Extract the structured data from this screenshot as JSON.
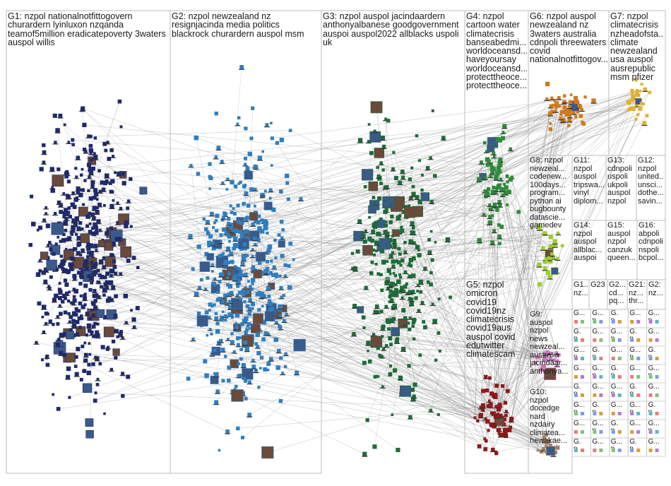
{
  "groups": [
    {
      "id": "G1",
      "label": "G1: nzpol nationalnotfittogovern\nchurardern lyinluxon nzqanda\nteamof5million eradicatepoverty 3waters\nauspol willis",
      "color": "#1f2a6b"
    },
    {
      "id": "G2",
      "label": "G2: nzpol newzealand nz\nresignjacinda media politics\nblackrock churardern auspol msm",
      "color": "#2f7fc0"
    },
    {
      "id": "G3",
      "label": "G3: nzpol auspol jacindaardern\nanthonyalbanese goodgovernment\nauspoi auspol2022 allblacks uspoli\nuk",
      "color": "#1e6b3a"
    },
    {
      "id": "G4",
      "label": "G4: nzpol\ncartoon water\nclimatecrisis\nbanseabedmi...\nworldoceansd...\nhaveyoursay\nworldoceansd...\nprotecttheoce...\nprotecttheoce...",
      "color": "#2e8b3a"
    },
    {
      "id": "G5",
      "label": "G5: nzpol\nomicron\ncovid19\ncovid19nz\nclimatecrisis\ncovid19aus\nauspol covid\nedutwitter\nclimatescam",
      "color": "#8b1a1a"
    },
    {
      "id": "G6",
      "label": "G6: nzpol auspol\nnewzealand nz\n3waters australia\ncdnpoli threewaters\ncovid\nnationalnotfittogov...",
      "color": "#d07a20"
    },
    {
      "id": "G7",
      "label": "G7: nzpol\nclimatecrisis\nnzheadofsta...\nclimate\nnewzealand\nusa auspol\nausrepublic\nmsm pfizer",
      "color": "#e0b030"
    },
    {
      "id": "G8",
      "label": "G8: nzpol\nnewzeal...\ncodenew...\n100days...\nprogram...\npython ai\nbugbounty\ndatascie...\ngamedev",
      "color": "#9acd32"
    },
    {
      "id": "G9",
      "label": "G9:\nauspol\nnzpol\nnews\nnewzeal...\naustralia\njacindaar...\nanthonya...",
      "color": "#d070c0"
    },
    {
      "id": "G10",
      "label": "G10:\nnzpol\ndocedge\nnard\nnzdairy\nclimatea...\nhewakae...",
      "color": "#a08060"
    },
    {
      "id": "G11",
      "label": "G11:\nnzpol\nauspol\ntripswa...\nvinyl\ndiplom...",
      "color": "#6a5acd"
    },
    {
      "id": "G12",
      "label": "G12:\nnzpol\nunited...\nunsci...\ndothe...\nsavin...",
      "color": "#4682b4"
    },
    {
      "id": "G13",
      "label": "G13:\ncdnpoli\nuspoli\nukpoli\nauspol\nnzpol",
      "color": "#b22222"
    },
    {
      "id": "G14",
      "label": "G14:\nnzpol\nauspol\nallblac...\nauspoi",
      "color": "#228b22"
    },
    {
      "id": "G15",
      "label": "G15:\nauspol\nnzpol\ncanzuk\nqueen...",
      "color": "#8b008b"
    },
    {
      "id": "G16",
      "label": "G16:\nabpoli\ncdnpoli\nnspoli\nbcpol...",
      "color": "#ff8c00"
    },
    {
      "id": "G17",
      "label": "G1...\nnz...",
      "color": "#808080"
    },
    {
      "id": "G23",
      "label": "G23:",
      "color": "#808080"
    },
    {
      "id": "G2x",
      "label": "G2...\ncd...\npq...",
      "color": "#808080"
    },
    {
      "id": "G21",
      "label": "G21:\nnz...\nthr...",
      "color": "#808080"
    },
    {
      "id": "G2y",
      "label": "G2:\nnz...",
      "color": "#808080"
    }
  ],
  "small_cells": [
    "G...",
    "G...\nn...",
    "G.\nn..."
  ]
}
